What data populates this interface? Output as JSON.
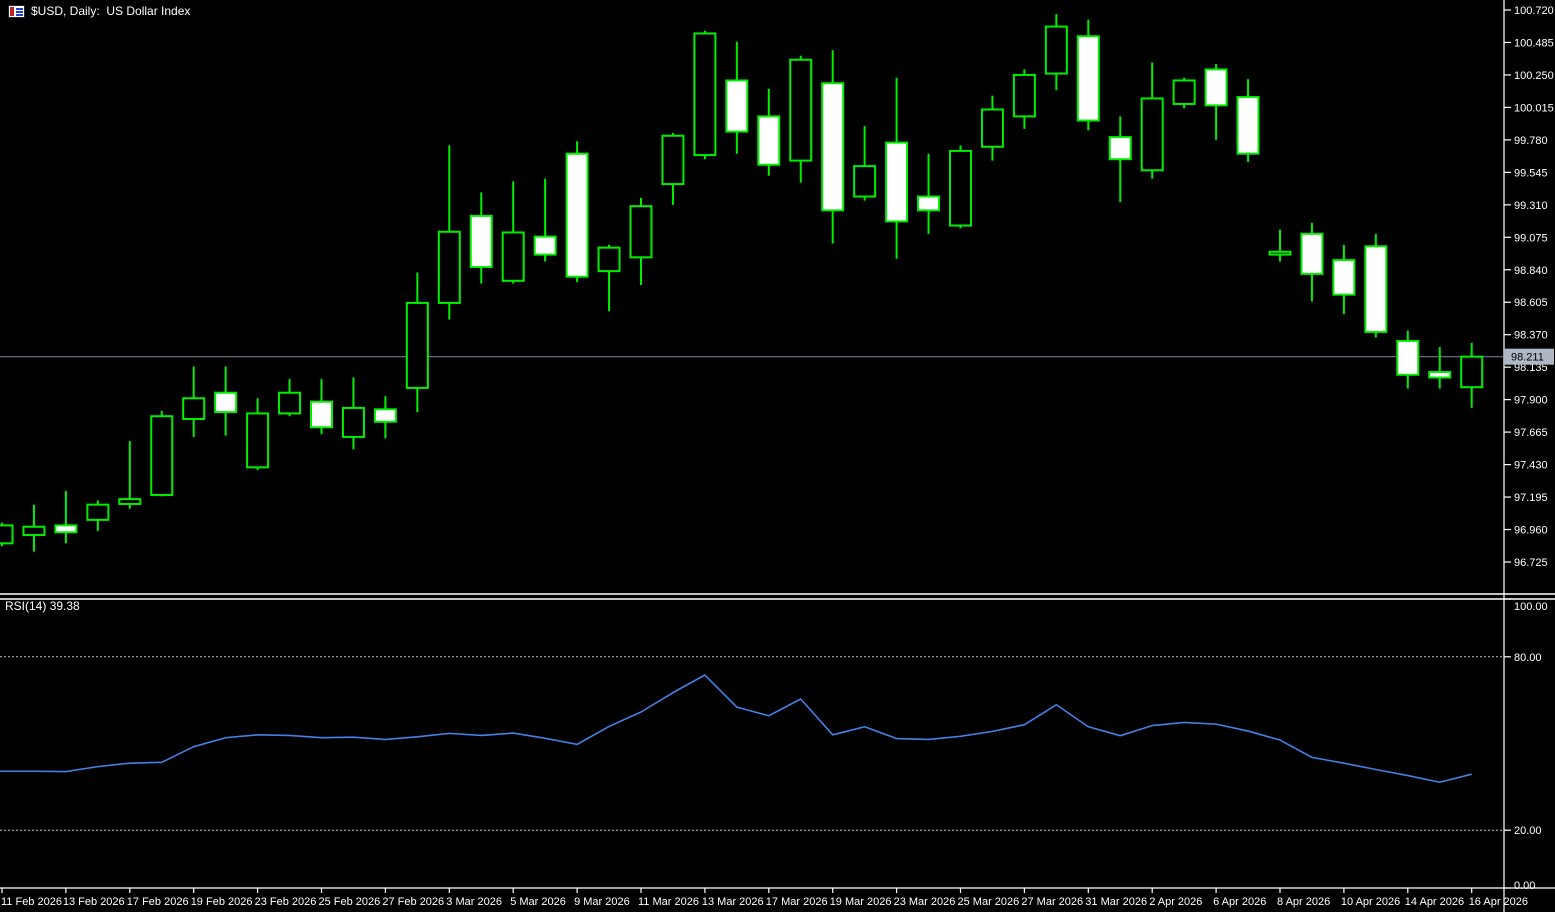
{
  "window": {
    "symbol_title": "$USD, Daily:  US Dollar Index"
  },
  "rsi_panel": {
    "label": "RSI(14)",
    "value": "39.38",
    "levels": [
      {
        "text": "100.00",
        "value": 100,
        "dashed": false
      },
      {
        "text": "80.00",
        "value": 80,
        "dashed": true
      },
      {
        "text": "20.00",
        "value": 20,
        "dashed": true
      },
      {
        "text": "0.00",
        "value": 0,
        "dashed": false
      }
    ]
  },
  "price_axis": {
    "labels": [
      "100.720",
      "100.485",
      "100.250",
      "100.015",
      "99.780",
      "99.545",
      "99.310",
      "99.075",
      "98.840",
      "98.605",
      "98.370",
      "98.135",
      "97.900",
      "97.665",
      "97.430",
      "97.195",
      "96.960",
      "96.725"
    ]
  },
  "current_price": {
    "text": "98.211",
    "value": 98.211
  },
  "date_axis": {
    "tick_every": 2,
    "labels": [
      "11 Feb 2026",
      "13 Feb 2026",
      "17 Feb 2026",
      "19 Feb 2026",
      "23 Feb 2026",
      "25 Feb 2026",
      "27 Feb 2026",
      "3 Mar 2026",
      "5 Mar 2026",
      "9 Mar 2026",
      "11 Mar 2026",
      "13 Mar 2026",
      "17 Mar 2026",
      "19 Mar 2026",
      "23 Mar 2026",
      "25 Mar 2026",
      "27 Mar 2026",
      "31 Mar 2026",
      "2 Apr 2026",
      "6 Apr 2026",
      "8 Apr 2026",
      "10 Apr 2026",
      "14 Apr 2026",
      "16 Apr 2026"
    ]
  },
  "colors": {
    "background": "#000000",
    "candle_outline": "#00EE00",
    "bull_body_fill": "#000000",
    "bear_body_fill": "#FFFFFF",
    "rsi_line": "#4680E6",
    "level_dashed": "#C8C8C8",
    "axis_line": "#FFFFFF",
    "axis_text": "#FFFFFF",
    "price_line": "#6C7C8C",
    "price_badge_bg": "#AEB8C4",
    "price_badge_text": "#000000",
    "icon_red": "#C32222",
    "icon_blue": "#2244CC"
  },
  "chart_data": {
    "type": "candlestick",
    "symbol": "$USD",
    "timeframe": "Daily",
    "description": "US Dollar Index",
    "price_ylim": [
      96.49,
      100.79
    ],
    "grid": false,
    "current_price_line": 98.211,
    "candles": [
      {
        "date": "11 Feb 2026",
        "o": 96.86,
        "h": 97.01,
        "l": 96.84,
        "c": 96.99
      },
      {
        "date": "12 Feb 2026",
        "o": 96.92,
        "h": 97.14,
        "l": 96.8,
        "c": 96.98
      },
      {
        "date": "13 Feb 2026",
        "o": 96.99,
        "h": 97.24,
        "l": 96.86,
        "c": 96.94
      },
      {
        "date": "16 Feb 2026",
        "o": 97.03,
        "h": 97.17,
        "l": 96.95,
        "c": 97.14
      },
      {
        "date": "17 Feb 2026",
        "o": 97.145,
        "h": 97.6,
        "l": 97.11,
        "c": 97.18
      },
      {
        "date": "18 Feb 2026",
        "o": 97.21,
        "h": 97.82,
        "l": 97.2,
        "c": 97.78
      },
      {
        "date": "19 Feb 2026",
        "o": 97.76,
        "h": 98.14,
        "l": 97.63,
        "c": 97.91
      },
      {
        "date": "20 Feb 2026",
        "o": 97.95,
        "h": 98.14,
        "l": 97.64,
        "c": 97.81
      },
      {
        "date": "23 Feb 2026",
        "o": 97.41,
        "h": 97.91,
        "l": 97.39,
        "c": 97.8
      },
      {
        "date": "24 Feb 2026",
        "o": 97.8,
        "h": 98.05,
        "l": 97.78,
        "c": 97.95
      },
      {
        "date": "25 Feb 2026",
        "o": 97.885,
        "h": 98.05,
        "l": 97.65,
        "c": 97.7
      },
      {
        "date": "26 Feb 2026",
        "o": 97.63,
        "h": 98.06,
        "l": 97.54,
        "c": 97.84
      },
      {
        "date": "27 Feb 2026",
        "o": 97.83,
        "h": 97.925,
        "l": 97.62,
        "c": 97.74
      },
      {
        "date": "2 Mar 2026",
        "o": 97.985,
        "h": 98.82,
        "l": 97.81,
        "c": 98.6
      },
      {
        "date": "3 Mar 2026",
        "o": 98.6,
        "h": 99.74,
        "l": 98.48,
        "c": 99.115
      },
      {
        "date": "4 Mar 2026",
        "o": 99.23,
        "h": 99.4,
        "l": 98.74,
        "c": 98.86
      },
      {
        "date": "5 Mar 2026",
        "o": 98.76,
        "h": 99.48,
        "l": 98.74,
        "c": 99.11
      },
      {
        "date": "6 Mar 2026",
        "o": 99.08,
        "h": 99.5,
        "l": 98.9,
        "c": 98.95
      },
      {
        "date": "9 Mar 2026",
        "o": 99.68,
        "h": 99.77,
        "l": 98.75,
        "c": 98.79
      },
      {
        "date": "10 Mar 2026",
        "o": 98.83,
        "h": 99.02,
        "l": 98.54,
        "c": 99.0
      },
      {
        "date": "11 Mar 2026",
        "o": 98.93,
        "h": 99.36,
        "l": 98.73,
        "c": 99.3
      },
      {
        "date": "12 Mar 2026",
        "o": 99.46,
        "h": 99.83,
        "l": 99.31,
        "c": 99.81
      },
      {
        "date": "13 Mar 2026",
        "o": 99.67,
        "h": 100.57,
        "l": 99.64,
        "c": 100.55
      },
      {
        "date": "16 Mar 2026",
        "o": 100.21,
        "h": 100.49,
        "l": 99.68,
        "c": 99.84
      },
      {
        "date": "17 Mar 2026",
        "o": 99.95,
        "h": 100.15,
        "l": 99.52,
        "c": 99.6
      },
      {
        "date": "18 Mar 2026",
        "o": 99.63,
        "h": 100.39,
        "l": 99.47,
        "c": 100.36
      },
      {
        "date": "19 Mar 2026",
        "o": 100.19,
        "h": 100.43,
        "l": 99.03,
        "c": 99.27
      },
      {
        "date": "20 Mar 2026",
        "o": 99.37,
        "h": 99.88,
        "l": 99.34,
        "c": 99.59
      },
      {
        "date": "23 Mar 2026",
        "o": 99.76,
        "h": 100.23,
        "l": 98.92,
        "c": 99.19
      },
      {
        "date": "24 Mar 2026",
        "o": 99.37,
        "h": 99.68,
        "l": 99.1,
        "c": 99.27
      },
      {
        "date": "25 Mar 2026",
        "o": 99.16,
        "h": 99.74,
        "l": 99.14,
        "c": 99.7
      },
      {
        "date": "26 Mar 2026",
        "o": 99.73,
        "h": 100.1,
        "l": 99.63,
        "c": 100.0
      },
      {
        "date": "27 Mar 2026",
        "o": 99.95,
        "h": 100.29,
        "l": 99.86,
        "c": 100.25
      },
      {
        "date": "30 Mar 2026",
        "o": 100.26,
        "h": 100.69,
        "l": 100.14,
        "c": 100.6
      },
      {
        "date": "31 Mar 2026",
        "o": 100.53,
        "h": 100.65,
        "l": 99.85,
        "c": 99.92
      },
      {
        "date": "1 Apr 2026",
        "o": 99.8,
        "h": 99.95,
        "l": 99.33,
        "c": 99.64
      },
      {
        "date": "2 Apr 2026",
        "o": 99.56,
        "h": 100.34,
        "l": 99.5,
        "c": 100.08
      },
      {
        "date": "3 Apr 2026",
        "o": 100.04,
        "h": 100.23,
        "l": 100.01,
        "c": 100.21
      },
      {
        "date": "6 Apr 2026",
        "o": 100.29,
        "h": 100.33,
        "l": 99.78,
        "c": 100.03
      },
      {
        "date": "7 Apr 2026",
        "o": 100.09,
        "h": 100.22,
        "l": 99.62,
        "c": 99.68
      },
      {
        "date": "8 Apr 2026",
        "o": 98.95,
        "h": 99.13,
        "l": 98.9,
        "c": 98.97
      },
      {
        "date": "9 Apr 2026",
        "o": 99.1,
        "h": 99.18,
        "l": 98.61,
        "c": 98.81
      },
      {
        "date": "10 Apr 2026",
        "o": 98.91,
        "h": 99.02,
        "l": 98.52,
        "c": 98.66
      },
      {
        "date": "13 Apr 2026",
        "o": 99.01,
        "h": 99.1,
        "l": 98.35,
        "c": 98.39
      },
      {
        "date": "14 Apr 2026",
        "o": 98.325,
        "h": 98.4,
        "l": 97.98,
        "c": 98.08
      },
      {
        "date": "15 Apr 2026",
        "o": 98.1,
        "h": 98.28,
        "l": 97.98,
        "c": 98.06
      },
      {
        "date": "16 Apr 2026",
        "o": 97.99,
        "h": 98.31,
        "l": 97.84,
        "c": 98.211
      }
    ],
    "rsi": {
      "period": 14,
      "ylim": [
        0,
        100
      ],
      "levels": [
        80,
        20
      ],
      "values": [
        40.4,
        40.4,
        40.3,
        42.0,
        43.2,
        43.5,
        48.9,
        52.0,
        53.0,
        52.8,
        52.0,
        52.2,
        51.4,
        52.3,
        53.5,
        52.8,
        53.6,
        51.8,
        49.7,
        55.9,
        60.9,
        67.6,
        73.7,
        62.6,
        59.6,
        65.4,
        53.0,
        55.8,
        51.7,
        51.4,
        52.5,
        54.2,
        56.5,
        63.4,
        55.8,
        52.7,
        56.2,
        57.3,
        56.7,
        54.3,
        51.2,
        45.2,
        43.2,
        41.0,
        38.9,
        36.6,
        39.38
      ]
    }
  }
}
